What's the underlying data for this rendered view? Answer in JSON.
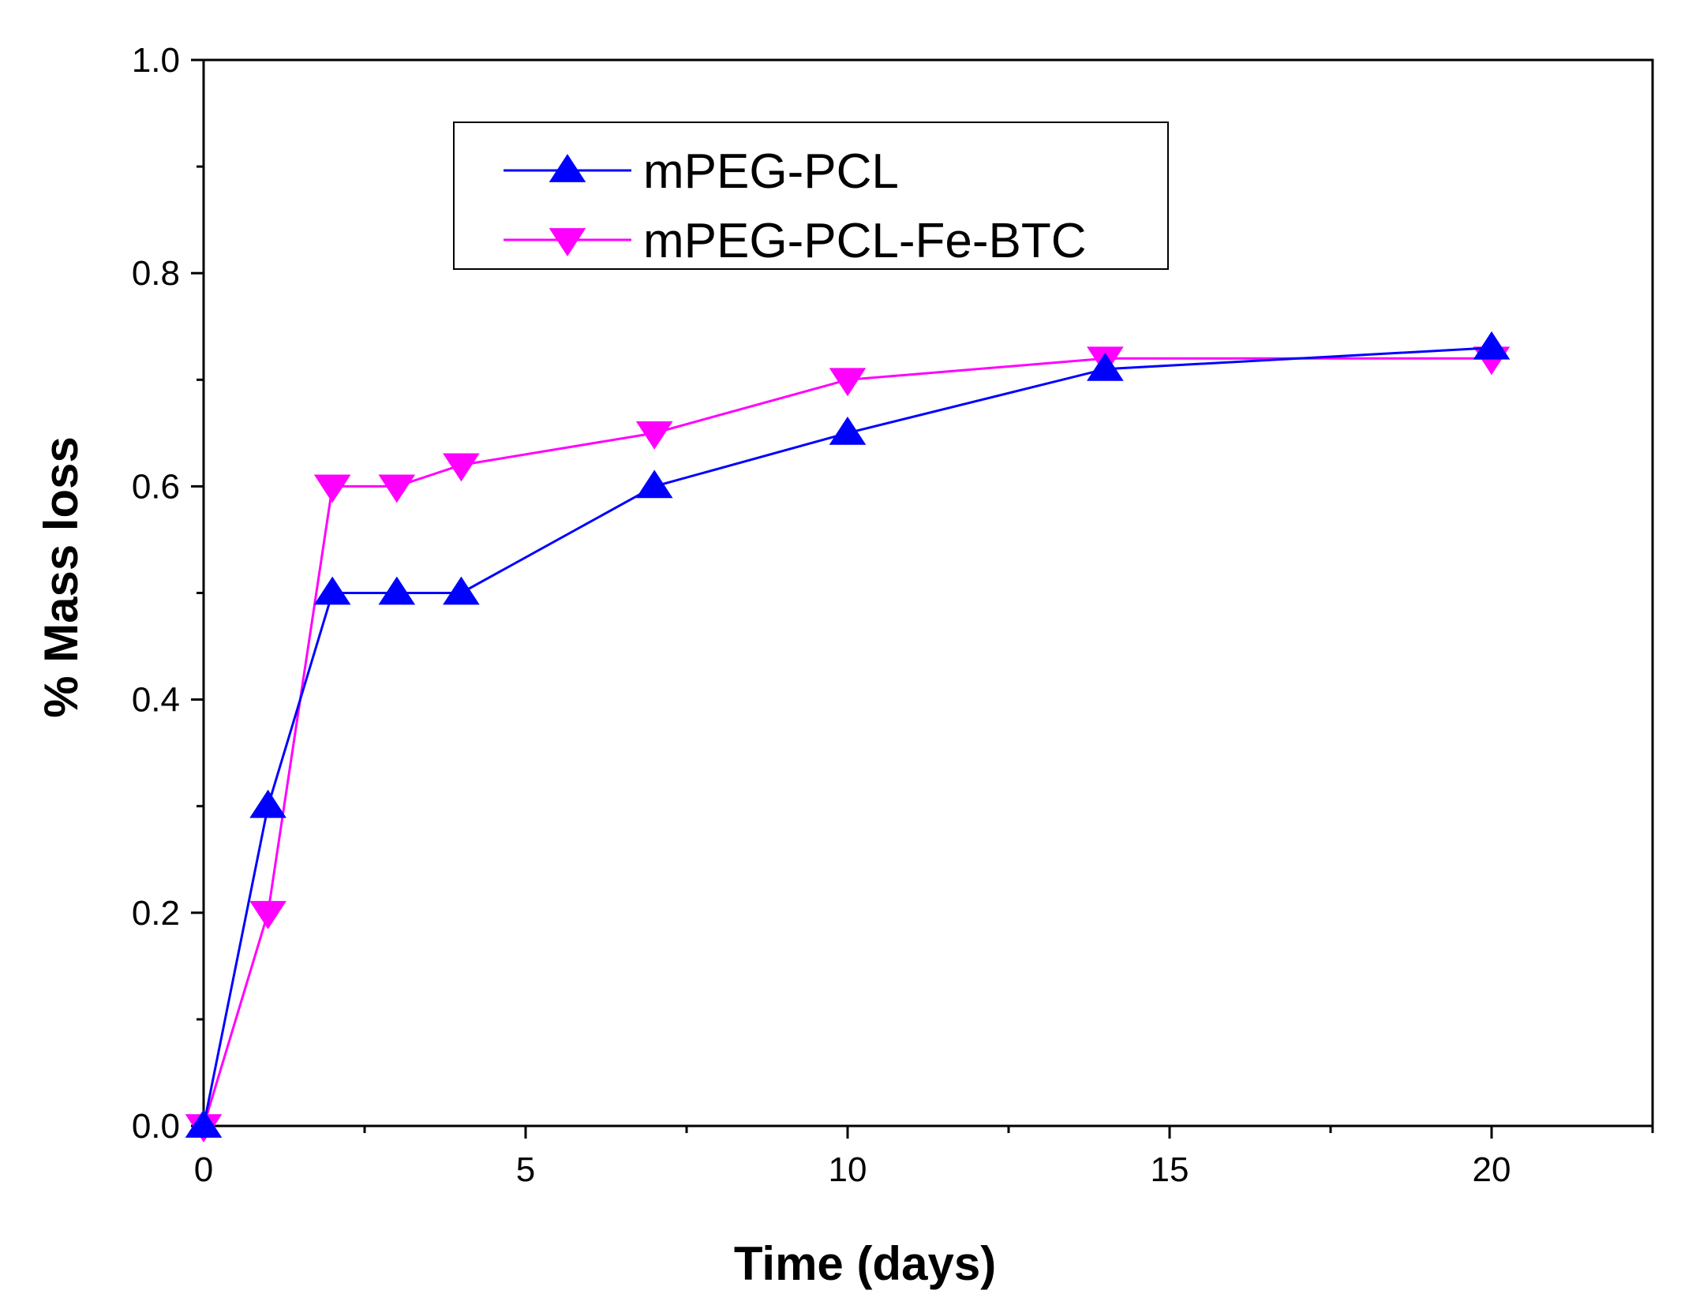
{
  "chart_data": {
    "type": "line",
    "title": "",
    "xlabel": "Time (days)",
    "ylabel": "% Mass loss",
    "xlim": [
      0,
      22.5
    ],
    "ylim": [
      0,
      1.0
    ],
    "x_ticks": [
      0,
      5,
      10,
      15,
      20
    ],
    "x_tick_labels": [
      "0",
      "5",
      "10",
      "15",
      "20"
    ],
    "y_ticks": [
      0,
      0.2,
      0.4,
      0.6,
      0.8,
      1.0
    ],
    "y_tick_labels": [
      "0.0",
      "0.2",
      "0.4",
      "0.6",
      "0.8",
      "1.0"
    ],
    "legend_position": "top-center",
    "series": [
      {
        "name": "mPEG-PCL",
        "color": "#0000ff",
        "marker": "triangle-up",
        "x": [
          0,
          1,
          2,
          3,
          4,
          7,
          10,
          14,
          20
        ],
        "y": [
          0,
          0.3,
          0.5,
          0.5,
          0.5,
          0.6,
          0.65,
          0.71,
          0.73
        ]
      },
      {
        "name": "mPEG-PCL-Fe-BTC",
        "color": "#ff00ff",
        "marker": "triangle-down",
        "x": [
          0,
          1,
          2,
          3,
          4,
          7,
          10,
          14,
          20
        ],
        "y": [
          0,
          0.2,
          0.6,
          0.6,
          0.62,
          0.65,
          0.7,
          0.72,
          0.72
        ]
      }
    ]
  }
}
